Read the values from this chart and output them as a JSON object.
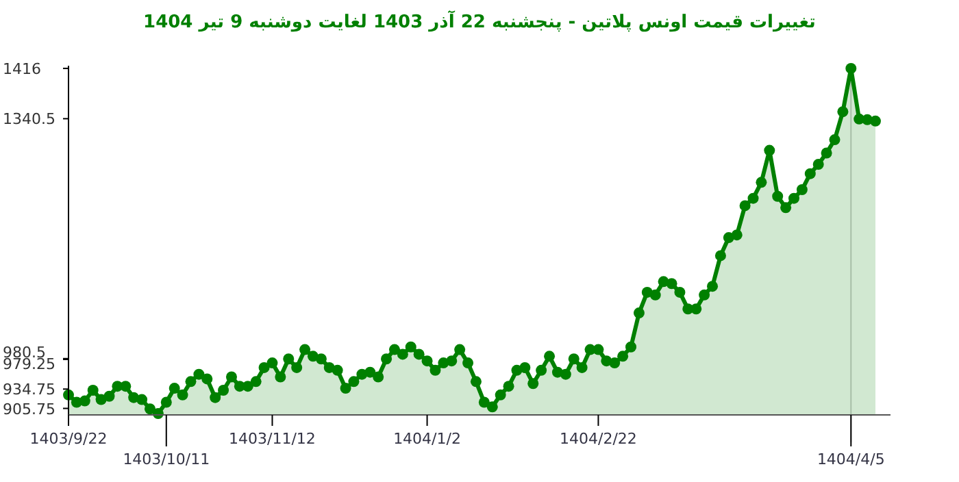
{
  "chart_data": {
    "type": "area",
    "title": "تغییرات قیمت اونس پلاتین - پنجشنبه  22 آذر 1403 لغایت  دوشنبه  9 تیر 1404",
    "categories": [
      "1403/9/22",
      null,
      null,
      null,
      null,
      null,
      null,
      null,
      null,
      null,
      null,
      null,
      "1403/10/11",
      null,
      null,
      null,
      null,
      null,
      null,
      null,
      null,
      null,
      null,
      null,
      null,
      "1403/11/12",
      null,
      null,
      null,
      null,
      null,
      null,
      null,
      null,
      null,
      null,
      null,
      null,
      null,
      null,
      null,
      null,
      null,
      null,
      "1404/1/2",
      null,
      null,
      null,
      null,
      null,
      null,
      null,
      null,
      null,
      null,
      null,
      null,
      null,
      null,
      null,
      null,
      null,
      null,
      null,
      null,
      "1404/2/22",
      null,
      null,
      null,
      null,
      null,
      null,
      null,
      null,
      null,
      null,
      null,
      null,
      null,
      null,
      null,
      null,
      null,
      null,
      null,
      null,
      null,
      null,
      null,
      null,
      null,
      null,
      null,
      null,
      null,
      null,
      "1404/4/5",
      null,
      null,
      null
    ],
    "series": [
      {
        "color": "#008000",
        "values": [
          926,
          915,
          917,
          933,
          919,
          924,
          939,
          939,
          922,
          919,
          905,
          898,
          915,
          936,
          926,
          946,
          957,
          950,
          922,
          933,
          953,
          939,
          939,
          946,
          967,
          974,
          953,
          980,
          967,
          994,
          984,
          980,
          967,
          963,
          936,
          946,
          957,
          960,
          953,
          980,
          994,
          987,
          998,
          987,
          977,
          963,
          974,
          977,
          994,
          974,
          946,
          915,
          908,
          926,
          939,
          963,
          967,
          943,
          963,
          984,
          960,
          957,
          980,
          967,
          994,
          994,
          977,
          974,
          984,
          998,
          1049,
          1080,
          1076,
          1096,
          1093,
          1080,
          1055,
          1055,
          1076,
          1089,
          1135,
          1162,
          1166,
          1210,
          1221,
          1245,
          1293,
          1224,
          1207,
          1221,
          1234,
          1258,
          1272,
          1289,
          1309,
          1351,
          1416,
          1340,
          1339,
          1337
        ]
      }
    ],
    "ylim": [
      896,
      1420
    ],
    "yticks": [
      905.75,
      934.75,
      979.25,
      980.5,
      1340.5,
      1416
    ],
    "ref_lines": [
      {
        "axis": "x",
        "value": "1404/4/5",
        "label": null,
        "color": "#cccccc"
      }
    ],
    "marker": "circle",
    "line_style": "solid",
    "grid": false
  }
}
